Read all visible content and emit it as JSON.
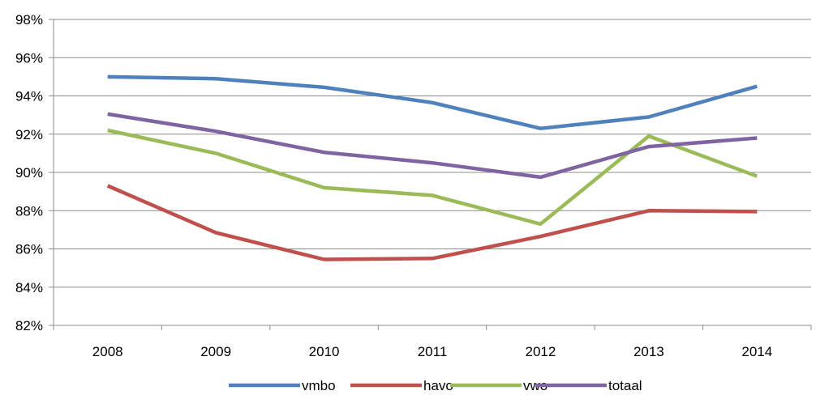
{
  "chart_data": {
    "type": "line",
    "categories": [
      "2008",
      "2009",
      "2010",
      "2011",
      "2012",
      "2013",
      "2014"
    ],
    "series": [
      {
        "name": "vmbo",
        "color": "#4F81BD",
        "values": [
          95.0,
          94.9,
          94.45,
          93.65,
          92.3,
          92.9,
          94.5
        ]
      },
      {
        "name": "havo",
        "color": "#C0504D",
        "values": [
          89.3,
          86.85,
          85.45,
          85.5,
          86.65,
          88.0,
          87.95
        ]
      },
      {
        "name": "vwo",
        "color": "#9BBB59",
        "values": [
          92.2,
          91.0,
          89.2,
          88.8,
          87.3,
          91.9,
          89.8
        ]
      },
      {
        "name": "totaal",
        "color": "#8064A2",
        "values": [
          93.05,
          92.15,
          91.05,
          90.5,
          89.75,
          91.35,
          91.8
        ]
      }
    ],
    "ylim": [
      82,
      98
    ],
    "yticks": [
      "82%",
      "84%",
      "86%",
      "88%",
      "90%",
      "92%",
      "94%",
      "96%",
      "98%"
    ],
    "grid": true,
    "legend_position": "bottom"
  }
}
